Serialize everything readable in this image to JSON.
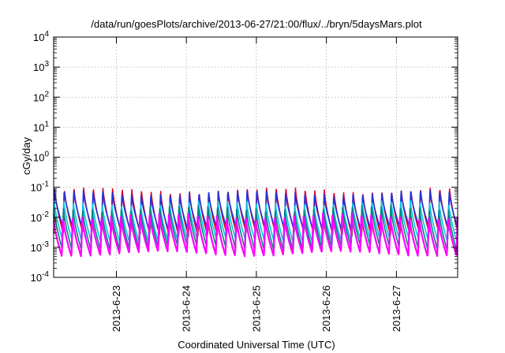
{
  "chart_data": {
    "type": "line",
    "title": "/data/run/goesPlots/archive/2013-06-27/21:00/flux/../bryn/5daysMars.plot",
    "xlabel": "Coordinated Universal Time (UTC)",
    "ylabel": "cGy/day",
    "yscale": "log",
    "ylim": [
      0.0001,
      10000
    ],
    "xlim": [
      "2013-06-22T02:30",
      "2013-06-27T21:00"
    ],
    "y_ticks": [
      {
        "base": "10",
        "exp": "-4"
      },
      {
        "base": "10",
        "exp": "-3"
      },
      {
        "base": "10",
        "exp": "-2"
      },
      {
        "base": "10",
        "exp": "-1"
      },
      {
        "base": "10",
        "exp": "0"
      },
      {
        "base": "10",
        "exp": "1"
      },
      {
        "base": "10",
        "exp": "2"
      },
      {
        "base": "10",
        "exp": "3"
      },
      {
        "base": "10",
        "exp": "4"
      }
    ],
    "x_ticks": [
      "2013-6-23",
      "2013-6-24",
      "2013-6-25",
      "2013-6-26",
      "2013-6-27"
    ],
    "grid": true,
    "pattern": "periodic sawtooth, period about 3.3 hours",
    "series": [
      {
        "color": "#e0001e",
        "y_peak": 0.085,
        "y_trough": 0.0028
      },
      {
        "color": "#2233dd",
        "y_peak": 0.07,
        "y_trough": 0.004
      },
      {
        "color": "#00c8e0",
        "y_peak": 0.032,
        "y_trough": 0.0015
      },
      {
        "color": "#008080",
        "y_peak": 0.022,
        "y_trough": 0.0009
      },
      {
        "color": "#ff00ff",
        "y_peak": 0.012,
        "y_trough": 0.0006
      }
    ]
  }
}
